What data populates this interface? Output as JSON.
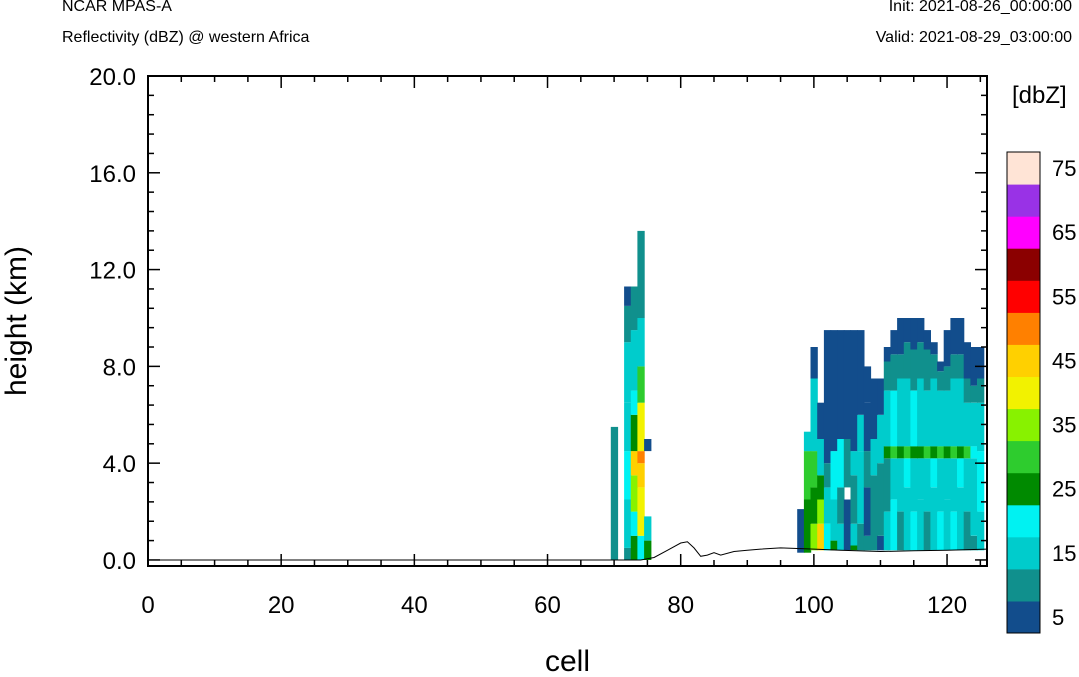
{
  "header": {
    "model": "NCAR MPAS-A",
    "field": "Reflectivity (dBZ) @ western Africa",
    "init": "Init: 2021-08-26_00:00:00",
    "valid": "Valid: 2021-08-29_03:00:00"
  },
  "chart_data": {
    "type": "heatmap",
    "title": "",
    "xlabel": "cell",
    "ylabel": "height (km)",
    "xlim": [
      0,
      126
    ],
    "ylim": [
      -0.25,
      20.0
    ],
    "x_ticks": [
      "0",
      "20",
      "40",
      "60",
      "80",
      "100",
      "120"
    ],
    "y_ticks": [
      "0.0",
      "4.0",
      "8.0",
      "12.0",
      "16.0",
      "20.0"
    ],
    "colorbar": {
      "label": "[dbZ]",
      "tick_labels": [
        "5",
        "15",
        "25",
        "35",
        "45",
        "55",
        "65",
        "75"
      ],
      "levels": [
        5,
        10,
        15,
        20,
        25,
        30,
        35,
        40,
        45,
        50,
        55,
        60,
        65,
        70,
        75
      ],
      "colors": [
        "#124d8c",
        "#10908d",
        "#00cccc",
        "#00f2f2",
        "#008a00",
        "#2ecc2e",
        "#88f200",
        "#f2f200",
        "#ffd000",
        "#ff8000",
        "#ff0000",
        "#8b0000",
        "#ff00ff",
        "#9932e6",
        "#ffe4d6"
      ]
    },
    "terrain_km": [
      [
        0,
        0.0
      ],
      [
        74,
        0.0
      ],
      [
        76,
        0.1
      ],
      [
        78,
        0.4
      ],
      [
        80,
        0.7
      ],
      [
        81,
        0.75
      ],
      [
        82,
        0.5
      ],
      [
        83,
        0.15
      ],
      [
        84,
        0.2
      ],
      [
        85,
        0.3
      ],
      [
        86,
        0.2
      ],
      [
        88,
        0.35
      ],
      [
        90,
        0.4
      ],
      [
        92,
        0.45
      ],
      [
        95,
        0.5
      ],
      [
        100,
        0.45
      ],
      [
        104,
        0.4
      ],
      [
        110,
        0.35
      ],
      [
        115,
        0.38
      ],
      [
        120,
        0.4
      ],
      [
        126,
        0.45
      ]
    ],
    "columns": [
      {
        "cell": 70,
        "segments": [
          [
            0.0,
            5.5,
            10
          ]
        ]
      },
      {
        "cell": 72,
        "segments": [
          [
            0.0,
            0.5,
            10
          ],
          [
            0.5,
            2.5,
            15
          ],
          [
            2.5,
            4.5,
            20
          ],
          [
            4.5,
            6.5,
            15
          ],
          [
            6.5,
            9.0,
            15
          ],
          [
            9.0,
            10.5,
            10
          ],
          [
            10.5,
            11.3,
            5
          ]
        ]
      },
      {
        "cell": 73,
        "segments": [
          [
            0.0,
            1.0,
            25
          ],
          [
            1.0,
            2.0,
            20
          ],
          [
            2.0,
            3.5,
            35
          ],
          [
            3.5,
            4.5,
            45
          ],
          [
            4.5,
            6.0,
            25
          ],
          [
            6.0,
            7.0,
            20
          ],
          [
            7.0,
            9.5,
            15
          ],
          [
            9.5,
            11.3,
            10
          ]
        ]
      },
      {
        "cell": 74,
        "segments": [
          [
            0.0,
            1.0,
            20
          ],
          [
            1.0,
            3.0,
            40
          ],
          [
            3.0,
            4.0,
            45
          ],
          [
            4.0,
            4.5,
            50
          ],
          [
            4.5,
            6.5,
            40
          ],
          [
            6.5,
            8.0,
            30
          ],
          [
            8.0,
            10.0,
            15
          ],
          [
            10.0,
            13.6,
            10
          ]
        ]
      },
      {
        "cell": 75,
        "segments": [
          [
            0.0,
            0.8,
            25
          ],
          [
            0.8,
            1.8,
            15
          ],
          [
            4.5,
            5.0,
            5
          ]
        ]
      },
      {
        "cell": 98,
        "segments": [
          [
            0.3,
            2.1,
            5
          ]
        ]
      },
      {
        "cell": 99,
        "segments": [
          [
            0.3,
            2.5,
            25
          ],
          [
            2.5,
            4.5,
            30
          ],
          [
            4.5,
            5.3,
            15
          ]
        ]
      },
      {
        "cell": 100,
        "segments": [
          [
            0.4,
            1.5,
            35
          ],
          [
            1.5,
            3.0,
            25
          ],
          [
            3.0,
            4.5,
            30
          ],
          [
            4.5,
            7.5,
            15
          ],
          [
            7.5,
            8.8,
            5
          ]
        ]
      },
      {
        "cell": 101,
        "segments": [
          [
            0.4,
            1.5,
            45
          ],
          [
            1.5,
            2.5,
            35
          ],
          [
            2.5,
            3.5,
            25
          ],
          [
            3.5,
            5.0,
            15
          ],
          [
            5.0,
            6.5,
            5
          ]
        ]
      },
      {
        "cell": 102,
        "segments": [
          [
            0.4,
            1.5,
            20
          ],
          [
            1.5,
            3.0,
            15
          ],
          [
            3.0,
            4.0,
            10
          ],
          [
            4.0,
            7.5,
            5
          ],
          [
            7.5,
            9.5,
            5
          ]
        ]
      },
      {
        "cell": 103,
        "segments": [
          [
            0.4,
            0.8,
            25
          ],
          [
            0.8,
            2.5,
            15
          ],
          [
            2.5,
            4.5,
            20
          ],
          [
            4.5,
            7.5,
            5
          ],
          [
            7.5,
            9.5,
            5
          ]
        ]
      },
      {
        "cell": 104,
        "segments": [
          [
            0.4,
            1.5,
            15
          ],
          [
            1.5,
            3.0,
            10
          ],
          [
            3.0,
            5.0,
            20
          ],
          [
            5.0,
            9.5,
            5
          ]
        ]
      },
      {
        "cell": 105,
        "segments": [
          [
            0.4,
            2.5,
            5
          ],
          [
            3.0,
            5.0,
            10
          ],
          [
            5.0,
            9.5,
            5
          ]
        ]
      },
      {
        "cell": 106,
        "segments": [
          [
            0.4,
            0.6,
            25
          ],
          [
            0.6,
            1.5,
            15
          ],
          [
            1.5,
            3.5,
            10
          ],
          [
            3.5,
            4.5,
            15
          ],
          [
            4.5,
            9.5,
            5
          ]
        ]
      },
      {
        "cell": 107,
        "segments": [
          [
            0.4,
            1.5,
            10
          ],
          [
            1.5,
            4.5,
            15
          ],
          [
            4.5,
            6.0,
            15
          ],
          [
            6.0,
            9.5,
            5
          ]
        ]
      },
      {
        "cell": 108,
        "segments": [
          [
            0.4,
            1.0,
            10
          ],
          [
            1.0,
            3.0,
            5
          ],
          [
            3.0,
            4.5,
            10
          ],
          [
            4.5,
            6.5,
            5
          ],
          [
            6.5,
            8.0,
            5
          ]
        ]
      },
      {
        "cell": 109,
        "segments": [
          [
            0.4,
            3.5,
            10
          ],
          [
            3.5,
            5.0,
            15
          ],
          [
            5.0,
            7.5,
            5
          ]
        ]
      },
      {
        "cell": 110,
        "segments": [
          [
            0.4,
            1.0,
            5
          ],
          [
            1.0,
            4.0,
            10
          ],
          [
            4.0,
            6.0,
            15
          ],
          [
            6.0,
            7.5,
            5
          ]
        ]
      },
      {
        "cell": 111,
        "segments": [
          [
            0.4,
            2.0,
            15
          ],
          [
            2.0,
            4.2,
            10
          ],
          [
            4.2,
            4.7,
            25
          ],
          [
            4.7,
            7.0,
            15
          ],
          [
            7.0,
            8.2,
            10
          ],
          [
            8.2,
            8.8,
            5
          ]
        ]
      },
      {
        "cell": 112,
        "segments": [
          [
            0.4,
            2.5,
            20
          ],
          [
            2.5,
            4.2,
            15
          ],
          [
            4.2,
            4.7,
            30
          ],
          [
            4.7,
            7.0,
            20
          ],
          [
            7.0,
            8.5,
            10
          ],
          [
            8.5,
            9.5,
            5
          ]
        ]
      },
      {
        "cell": 113,
        "segments": [
          [
            0.4,
            2.0,
            10
          ],
          [
            2.0,
            4.2,
            15
          ],
          [
            4.2,
            4.7,
            25
          ],
          [
            4.7,
            7.5,
            15
          ],
          [
            7.5,
            8.5,
            10
          ],
          [
            8.5,
            10.0,
            5
          ]
        ]
      },
      {
        "cell": 114,
        "segments": [
          [
            0.4,
            3.0,
            15
          ],
          [
            3.0,
            4.2,
            20
          ],
          [
            4.2,
            4.7,
            30
          ],
          [
            4.7,
            7.5,
            15
          ],
          [
            7.5,
            9.0,
            10
          ],
          [
            9.0,
            10.0,
            5
          ]
        ]
      },
      {
        "cell": 115,
        "segments": [
          [
            0.4,
            2.0,
            20
          ],
          [
            2.0,
            4.2,
            15
          ],
          [
            4.2,
            4.7,
            25
          ],
          [
            4.7,
            7.0,
            20
          ],
          [
            7.0,
            8.7,
            10
          ],
          [
            8.7,
            10.0,
            5
          ]
        ]
      },
      {
        "cell": 116,
        "segments": [
          [
            0.4,
            2.5,
            15
          ],
          [
            2.5,
            4.2,
            15
          ],
          [
            4.2,
            4.7,
            25
          ],
          [
            4.7,
            7.5,
            15
          ],
          [
            7.5,
            9.0,
            10
          ],
          [
            9.0,
            10.0,
            5
          ]
        ]
      },
      {
        "cell": 117,
        "segments": [
          [
            0.4,
            2.0,
            10
          ],
          [
            2.0,
            4.2,
            15
          ],
          [
            4.2,
            4.7,
            30
          ],
          [
            4.7,
            7.0,
            15
          ],
          [
            7.0,
            8.7,
            10
          ],
          [
            8.7,
            9.5,
            5
          ]
        ]
      },
      {
        "cell": 118,
        "segments": [
          [
            0.4,
            3.0,
            15
          ],
          [
            3.0,
            4.2,
            20
          ],
          [
            4.2,
            4.7,
            25
          ],
          [
            4.7,
            7.5,
            15
          ],
          [
            7.5,
            8.5,
            10
          ],
          [
            8.5,
            9.0,
            5
          ]
        ]
      },
      {
        "cell": 119,
        "segments": [
          [
            0.4,
            2.0,
            20
          ],
          [
            2.0,
            4.2,
            15
          ],
          [
            4.2,
            4.7,
            30
          ],
          [
            4.7,
            7.0,
            15
          ],
          [
            7.0,
            7.8,
            10
          ],
          [
            7.8,
            8.2,
            5
          ]
        ]
      },
      {
        "cell": 120,
        "segments": [
          [
            0.4,
            2.5,
            15
          ],
          [
            2.5,
            4.2,
            15
          ],
          [
            4.2,
            4.7,
            25
          ],
          [
            4.7,
            7.0,
            15
          ],
          [
            7.0,
            8.0,
            10
          ],
          [
            8.0,
            9.5,
            5
          ]
        ]
      },
      {
        "cell": 121,
        "segments": [
          [
            0.4,
            2.0,
            20
          ],
          [
            2.0,
            4.2,
            15
          ],
          [
            4.2,
            4.7,
            30
          ],
          [
            4.7,
            7.5,
            15
          ],
          [
            7.5,
            8.5,
            10
          ],
          [
            8.5,
            10.0,
            5
          ]
        ]
      },
      {
        "cell": 122,
        "segments": [
          [
            0.4,
            3.0,
            15
          ],
          [
            3.0,
            4.2,
            20
          ],
          [
            4.2,
            4.7,
            25
          ],
          [
            4.7,
            7.5,
            15
          ],
          [
            7.5,
            8.5,
            10
          ],
          [
            8.5,
            10.0,
            5
          ]
        ]
      },
      {
        "cell": 123,
        "segments": [
          [
            0.4,
            2.0,
            10
          ],
          [
            2.0,
            4.2,
            15
          ],
          [
            4.2,
            4.7,
            30
          ],
          [
            4.7,
            6.5,
            15
          ],
          [
            6.5,
            7.5,
            10
          ],
          [
            7.5,
            9.0,
            5
          ]
        ]
      },
      {
        "cell": 124,
        "segments": [
          [
            0.4,
            1.0,
            10
          ],
          [
            1.0,
            4.2,
            15
          ],
          [
            4.2,
            4.7,
            20
          ],
          [
            4.7,
            6.5,
            15
          ],
          [
            6.5,
            7.2,
            10
          ],
          [
            7.2,
            8.8,
            5
          ]
        ]
      },
      {
        "cell": 125,
        "segments": [
          [
            0.4,
            2.0,
            15
          ],
          [
            2.0,
            4.5,
            20
          ],
          [
            4.5,
            6.5,
            15
          ],
          [
            6.5,
            7.5,
            10
          ],
          [
            7.5,
            8.8,
            5
          ]
        ]
      }
    ]
  }
}
